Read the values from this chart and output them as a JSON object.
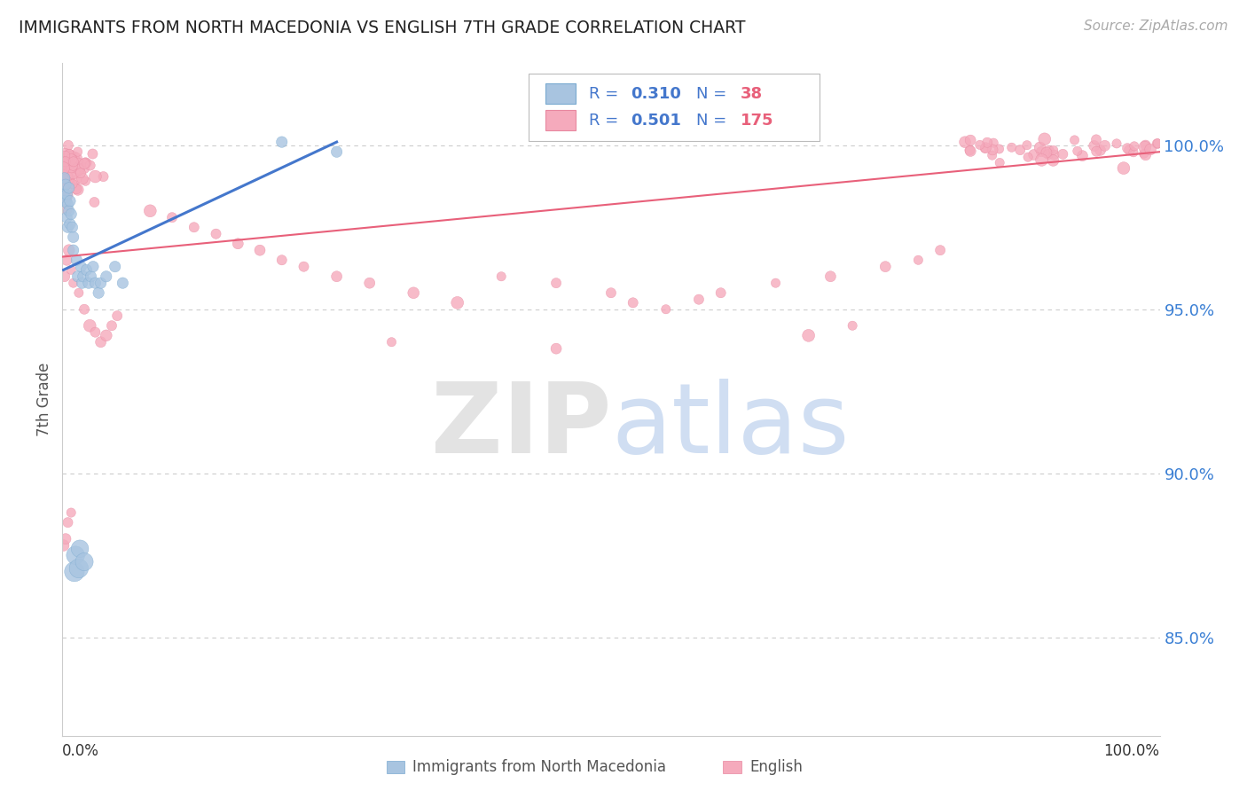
{
  "title": "IMMIGRANTS FROM NORTH MACEDONIA VS ENGLISH 7TH GRADE CORRELATION CHART",
  "source": "Source: ZipAtlas.com",
  "ylabel": "7th Grade",
  "ytick_labels": [
    "85.0%",
    "90.0%",
    "95.0%",
    "100.0%"
  ],
  "ytick_values": [
    0.85,
    0.9,
    0.95,
    1.0
  ],
  "xlim": [
    0.0,
    1.0
  ],
  "ylim": [
    0.82,
    1.025
  ],
  "blue_color": "#a8c4e0",
  "blue_edge_color": "#7aaad0",
  "blue_line_color": "#4477cc",
  "pink_color": "#f5aabc",
  "pink_edge_color": "#e888a0",
  "pink_line_color": "#e8607a",
  "background_color": "#ffffff",
  "grid_color": "#cccccc",
  "title_color": "#222222",
  "source_color": "#aaaaaa",
  "legend_R_color": "#4477cc",
  "legend_N_color": "#e8607a",
  "watermark_zip_color": "#cccccc",
  "watermark_atlas_color": "#aac4e8"
}
